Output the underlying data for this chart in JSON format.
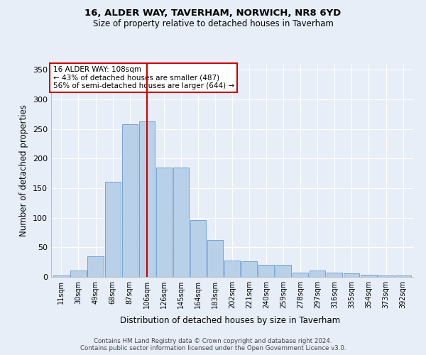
{
  "title1": "16, ALDER WAY, TAVERHAM, NORWICH, NR8 6YD",
  "title2": "Size of property relative to detached houses in Taverham",
  "xlabel": "Distribution of detached houses by size in Taverham",
  "ylabel": "Number of detached properties",
  "categories": [
    "11sqm",
    "30sqm",
    "49sqm",
    "68sqm",
    "87sqm",
    "106sqm",
    "126sqm",
    "145sqm",
    "164sqm",
    "183sqm",
    "202sqm",
    "221sqm",
    "240sqm",
    "259sqm",
    "278sqm",
    "297sqm",
    "316sqm",
    "335sqm",
    "354sqm",
    "373sqm",
    "392sqm"
  ],
  "values": [
    2,
    11,
    35,
    161,
    258,
    263,
    185,
    185,
    96,
    62,
    28,
    27,
    21,
    21,
    7,
    11,
    7,
    6,
    4,
    2,
    3
  ],
  "bar_color": "#b8d0e8",
  "bar_edge_color": "#6699cc",
  "vline_x": 5,
  "vline_color": "#cc0000",
  "annotation_title": "16 ALDER WAY: 108sqm",
  "annotation_line1": "← 43% of detached houses are smaller (487)",
  "annotation_line2": "56% of semi-detached houses are larger (644) →",
  "annotation_box_color": "#ffffff",
  "annotation_box_edge": "#cc0000",
  "footer1": "Contains HM Land Registry data © Crown copyright and database right 2024.",
  "footer2": "Contains public sector information licensed under the Open Government Licence v3.0.",
  "ylim": [
    0,
    360
  ],
  "yticks": [
    0,
    50,
    100,
    150,
    200,
    250,
    300,
    350
  ],
  "background_color": "#e8eef8",
  "grid_color": "#ffffff"
}
